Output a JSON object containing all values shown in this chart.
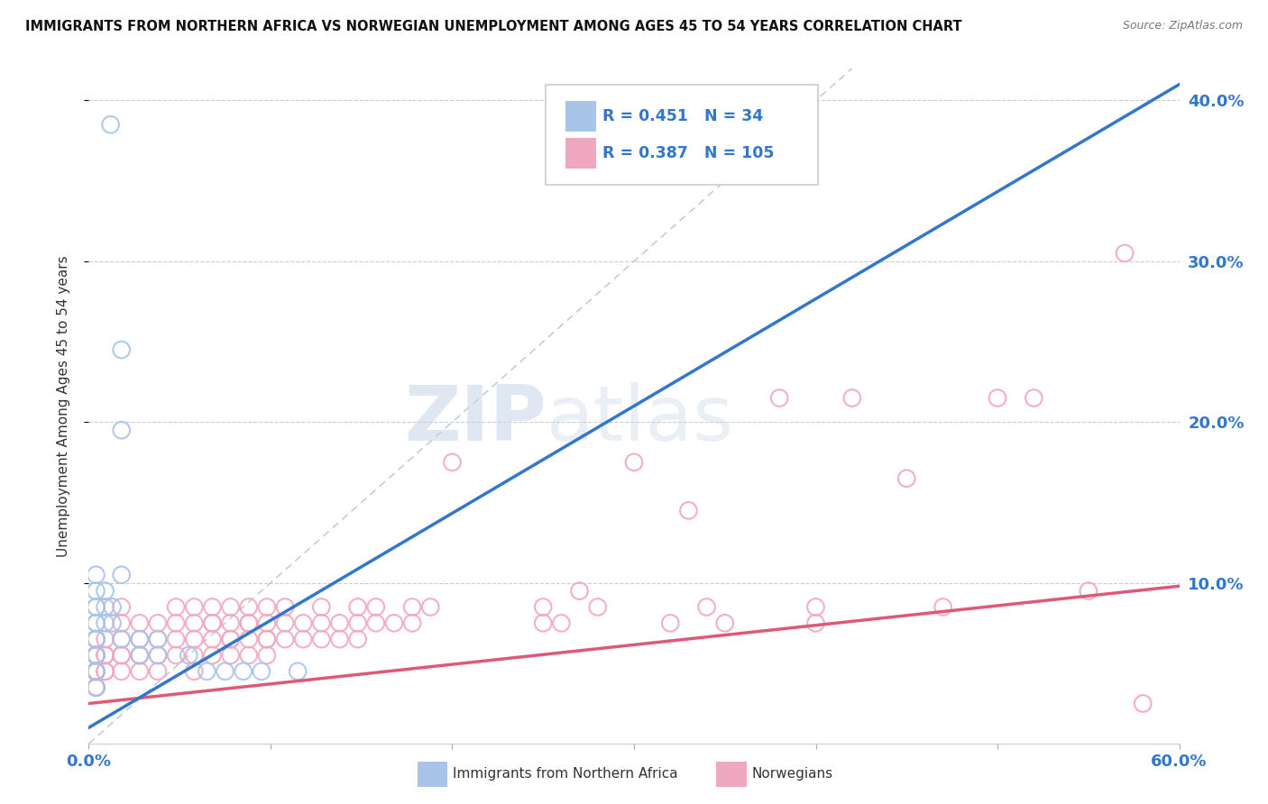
{
  "title": "IMMIGRANTS FROM NORTHERN AFRICA VS NORWEGIAN UNEMPLOYMENT AMONG AGES 45 TO 54 YEARS CORRELATION CHART",
  "source": "Source: ZipAtlas.com",
  "ylabel": "Unemployment Among Ages 45 to 54 years",
  "xlim": [
    0.0,
    0.6
  ],
  "ylim": [
    0.0,
    0.42
  ],
  "blue_R": 0.451,
  "blue_N": 34,
  "pink_R": 0.387,
  "pink_N": 105,
  "blue_color": "#a8c4e8",
  "pink_color": "#f0a8c0",
  "blue_line_color": "#3377cc",
  "pink_line_color": "#e05878",
  "diag_line_color": "#8ab0d8",
  "blue_scatter": [
    [
      0.012,
      0.385
    ],
    [
      0.018,
      0.245
    ],
    [
      0.004,
      0.065
    ],
    [
      0.004,
      0.085
    ],
    [
      0.004,
      0.075
    ],
    [
      0.004,
      0.055
    ],
    [
      0.004,
      0.045
    ],
    [
      0.004,
      0.095
    ],
    [
      0.004,
      0.045
    ],
    [
      0.004,
      0.035
    ],
    [
      0.004,
      0.055
    ],
    [
      0.004,
      0.065
    ],
    [
      0.004,
      0.075
    ],
    [
      0.004,
      0.105
    ],
    [
      0.004,
      0.085
    ],
    [
      0.004,
      0.055
    ],
    [
      0.009,
      0.095
    ],
    [
      0.009,
      0.085
    ],
    [
      0.009,
      0.075
    ],
    [
      0.018,
      0.105
    ],
    [
      0.013,
      0.085
    ],
    [
      0.013,
      0.075
    ],
    [
      0.018,
      0.195
    ],
    [
      0.018,
      0.065
    ],
    [
      0.028,
      0.065
    ],
    [
      0.028,
      0.055
    ],
    [
      0.038,
      0.065
    ],
    [
      0.038,
      0.055
    ],
    [
      0.055,
      0.055
    ],
    [
      0.065,
      0.045
    ],
    [
      0.075,
      0.045
    ],
    [
      0.085,
      0.045
    ],
    [
      0.095,
      0.045
    ],
    [
      0.115,
      0.045
    ]
  ],
  "pink_scatter": [
    [
      0.004,
      0.055
    ],
    [
      0.004,
      0.045
    ],
    [
      0.004,
      0.055
    ],
    [
      0.004,
      0.045
    ],
    [
      0.004,
      0.035
    ],
    [
      0.004,
      0.045
    ],
    [
      0.004,
      0.055
    ],
    [
      0.004,
      0.065
    ],
    [
      0.004,
      0.035
    ],
    [
      0.004,
      0.045
    ],
    [
      0.004,
      0.035
    ],
    [
      0.004,
      0.045
    ],
    [
      0.004,
      0.055
    ],
    [
      0.004,
      0.045
    ],
    [
      0.004,
      0.035
    ],
    [
      0.004,
      0.065
    ],
    [
      0.009,
      0.045
    ],
    [
      0.009,
      0.055
    ],
    [
      0.009,
      0.065
    ],
    [
      0.009,
      0.045
    ],
    [
      0.009,
      0.055
    ],
    [
      0.018,
      0.045
    ],
    [
      0.018,
      0.055
    ],
    [
      0.018,
      0.065
    ],
    [
      0.018,
      0.055
    ],
    [
      0.018,
      0.075
    ],
    [
      0.018,
      0.085
    ],
    [
      0.028,
      0.055
    ],
    [
      0.028,
      0.065
    ],
    [
      0.028,
      0.075
    ],
    [
      0.028,
      0.045
    ],
    [
      0.028,
      0.055
    ],
    [
      0.038,
      0.065
    ],
    [
      0.038,
      0.075
    ],
    [
      0.038,
      0.055
    ],
    [
      0.038,
      0.045
    ],
    [
      0.048,
      0.085
    ],
    [
      0.048,
      0.065
    ],
    [
      0.048,
      0.055
    ],
    [
      0.048,
      0.075
    ],
    [
      0.058,
      0.065
    ],
    [
      0.058,
      0.075
    ],
    [
      0.058,
      0.055
    ],
    [
      0.058,
      0.085
    ],
    [
      0.058,
      0.045
    ],
    [
      0.068,
      0.075
    ],
    [
      0.068,
      0.065
    ],
    [
      0.068,
      0.055
    ],
    [
      0.068,
      0.085
    ],
    [
      0.068,
      0.075
    ],
    [
      0.078,
      0.065
    ],
    [
      0.078,
      0.075
    ],
    [
      0.078,
      0.085
    ],
    [
      0.078,
      0.055
    ],
    [
      0.078,
      0.065
    ],
    [
      0.088,
      0.075
    ],
    [
      0.088,
      0.065
    ],
    [
      0.088,
      0.085
    ],
    [
      0.088,
      0.055
    ],
    [
      0.088,
      0.075
    ],
    [
      0.098,
      0.065
    ],
    [
      0.098,
      0.085
    ],
    [
      0.098,
      0.075
    ],
    [
      0.098,
      0.065
    ],
    [
      0.098,
      0.055
    ],
    [
      0.108,
      0.075
    ],
    [
      0.108,
      0.065
    ],
    [
      0.108,
      0.085
    ],
    [
      0.118,
      0.075
    ],
    [
      0.118,
      0.065
    ],
    [
      0.128,
      0.075
    ],
    [
      0.128,
      0.085
    ],
    [
      0.128,
      0.065
    ],
    [
      0.138,
      0.075
    ],
    [
      0.138,
      0.065
    ],
    [
      0.148,
      0.085
    ],
    [
      0.148,
      0.075
    ],
    [
      0.148,
      0.065
    ],
    [
      0.158,
      0.075
    ],
    [
      0.158,
      0.085
    ],
    [
      0.168,
      0.075
    ],
    [
      0.178,
      0.085
    ],
    [
      0.178,
      0.075
    ],
    [
      0.188,
      0.085
    ],
    [
      0.2,
      0.175
    ],
    [
      0.25,
      0.075
    ],
    [
      0.25,
      0.085
    ],
    [
      0.26,
      0.075
    ],
    [
      0.27,
      0.095
    ],
    [
      0.28,
      0.085
    ],
    [
      0.3,
      0.175
    ],
    [
      0.32,
      0.075
    ],
    [
      0.33,
      0.145
    ],
    [
      0.34,
      0.085
    ],
    [
      0.35,
      0.075
    ],
    [
      0.38,
      0.215
    ],
    [
      0.4,
      0.085
    ],
    [
      0.4,
      0.075
    ],
    [
      0.42,
      0.215
    ],
    [
      0.45,
      0.165
    ],
    [
      0.47,
      0.085
    ],
    [
      0.5,
      0.215
    ],
    [
      0.52,
      0.215
    ],
    [
      0.55,
      0.095
    ],
    [
      0.57,
      0.305
    ],
    [
      0.58,
      0.025
    ]
  ],
  "blue_line_x": [
    0.0,
    0.6
  ],
  "blue_line_y": [
    0.01,
    0.41
  ],
  "pink_line_x": [
    0.0,
    0.6
  ],
  "pink_line_y": [
    0.025,
    0.098
  ],
  "diag_line_x": [
    0.0,
    0.42
  ],
  "diag_line_y": [
    0.0,
    0.42
  ]
}
